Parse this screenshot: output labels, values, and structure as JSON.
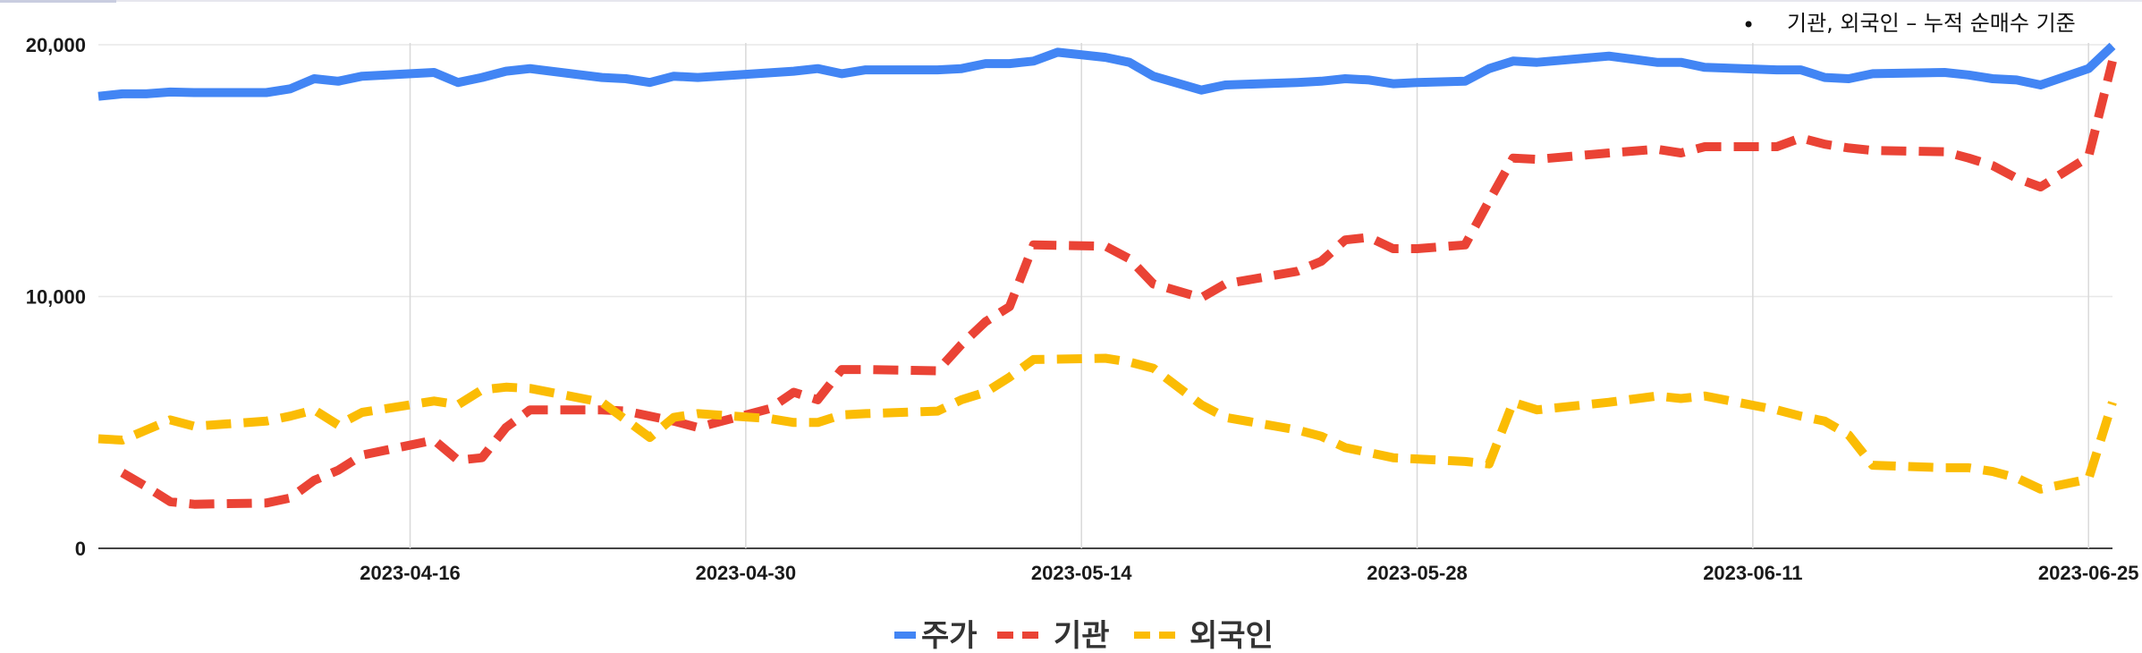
{
  "note": {
    "bullet": "•",
    "text": "기관, 외국인 – 누적 순매수 기준"
  },
  "chart_data": {
    "type": "line",
    "ylim": [
      0,
      20000
    ],
    "yticks": [
      {
        "value": 0,
        "label": "0"
      },
      {
        "value": 10000,
        "label": "10,000"
      },
      {
        "value": 20000,
        "label": "20,000"
      }
    ],
    "xlim": [
      "2023-04-03",
      "2023-06-26"
    ],
    "xticks": [
      {
        "date": "2023-04-16",
        "label": "2023-04-16"
      },
      {
        "date": "2023-04-30",
        "label": "2023-04-30"
      },
      {
        "date": "2023-05-14",
        "label": "2023-05-14"
      },
      {
        "date": "2023-05-28",
        "label": "2023-05-28"
      },
      {
        "date": "2023-06-11",
        "label": "2023-06-11"
      },
      {
        "date": "2023-06-25",
        "label": "2023-06-25"
      }
    ],
    "grid": true,
    "legend_position": "bottom",
    "series": [
      {
        "name": "주가",
        "color": "#4285F4",
        "dash": "solid",
        "points": [
          [
            "2023-04-03",
            17950
          ],
          [
            "2023-04-04",
            18050
          ],
          [
            "2023-04-05",
            18050
          ],
          [
            "2023-04-06",
            18120
          ],
          [
            "2023-04-07",
            18100
          ],
          [
            "2023-04-10",
            18100
          ],
          [
            "2023-04-11",
            18250
          ],
          [
            "2023-04-12",
            18650
          ],
          [
            "2023-04-13",
            18550
          ],
          [
            "2023-04-14",
            18750
          ],
          [
            "2023-04-17",
            18900
          ],
          [
            "2023-04-18",
            18500
          ],
          [
            "2023-04-19",
            18700
          ],
          [
            "2023-04-20",
            18950
          ],
          [
            "2023-04-21",
            19050
          ],
          [
            "2023-04-24",
            18700
          ],
          [
            "2023-04-25",
            18650
          ],
          [
            "2023-04-26",
            18500
          ],
          [
            "2023-04-27",
            18750
          ],
          [
            "2023-04-28",
            18700
          ],
          [
            "2023-05-02",
            18950
          ],
          [
            "2023-05-03",
            19050
          ],
          [
            "2023-05-04",
            18850
          ],
          [
            "2023-05-05",
            19000
          ],
          [
            "2023-05-08",
            19000
          ],
          [
            "2023-05-09",
            19050
          ],
          [
            "2023-05-10",
            19250
          ],
          [
            "2023-05-11",
            19250
          ],
          [
            "2023-05-12",
            19350
          ],
          [
            "2023-05-13",
            19700
          ],
          [
            "2023-05-15",
            19500
          ],
          [
            "2023-05-16",
            19300
          ],
          [
            "2023-05-17",
            18750
          ],
          [
            "2023-05-19",
            18200
          ],
          [
            "2023-05-20",
            18400
          ],
          [
            "2023-05-23",
            18500
          ],
          [
            "2023-05-24",
            18550
          ],
          [
            "2023-05-25",
            18650
          ],
          [
            "2023-05-26",
            18600
          ],
          [
            "2023-05-27",
            18450
          ],
          [
            "2023-05-28",
            18500
          ],
          [
            "2023-05-30",
            18550
          ],
          [
            "2023-05-31",
            19050
          ],
          [
            "2023-06-01",
            19350
          ],
          [
            "2023-06-02",
            19300
          ],
          [
            "2023-06-05",
            19550
          ],
          [
            "2023-06-07",
            19300
          ],
          [
            "2023-06-08",
            19300
          ],
          [
            "2023-06-09",
            19100
          ],
          [
            "2023-06-12",
            19000
          ],
          [
            "2023-06-13",
            19000
          ],
          [
            "2023-06-14",
            18700
          ],
          [
            "2023-06-15",
            18650
          ],
          [
            "2023-06-16",
            18850
          ],
          [
            "2023-06-19",
            18900
          ],
          [
            "2023-06-20",
            18800
          ],
          [
            "2023-06-21",
            18650
          ],
          [
            "2023-06-22",
            18600
          ],
          [
            "2023-06-23",
            18400
          ],
          [
            "2023-06-25",
            19050
          ],
          [
            "2023-06-26",
            19950
          ]
        ]
      },
      {
        "name": "기관",
        "color": "#EA4335",
        "dash": "dashed",
        "points": [
          [
            "2023-04-04",
            3000
          ],
          [
            "2023-04-05",
            2450
          ],
          [
            "2023-04-06",
            1850
          ],
          [
            "2023-04-07",
            1750
          ],
          [
            "2023-04-10",
            1800
          ],
          [
            "2023-04-11",
            2000
          ],
          [
            "2023-04-12",
            2700
          ],
          [
            "2023-04-13",
            3100
          ],
          [
            "2023-04-14",
            3700
          ],
          [
            "2023-04-17",
            4300
          ],
          [
            "2023-04-18",
            3500
          ],
          [
            "2023-04-19",
            3600
          ],
          [
            "2023-04-20",
            4800
          ],
          [
            "2023-04-21",
            5500
          ],
          [
            "2023-04-24",
            5500
          ],
          [
            "2023-04-25",
            5450
          ],
          [
            "2023-04-26",
            5250
          ],
          [
            "2023-04-27",
            5050
          ],
          [
            "2023-04-28",
            4800
          ],
          [
            "2023-05-01",
            5550
          ],
          [
            "2023-05-02",
            6200
          ],
          [
            "2023-05-03",
            5900
          ],
          [
            "2023-05-04",
            7100
          ],
          [
            "2023-05-05",
            7100
          ],
          [
            "2023-05-08",
            7050
          ],
          [
            "2023-05-09",
            8100
          ],
          [
            "2023-05-10",
            9000
          ],
          [
            "2023-05-11",
            9600
          ],
          [
            "2023-05-12",
            12050
          ],
          [
            "2023-05-15",
            12000
          ],
          [
            "2023-05-16",
            11500
          ],
          [
            "2023-05-17",
            10500
          ],
          [
            "2023-05-19",
            9950
          ],
          [
            "2023-05-20",
            10500
          ],
          [
            "2023-05-23",
            11000
          ],
          [
            "2023-05-24",
            11400
          ],
          [
            "2023-05-25",
            12250
          ],
          [
            "2023-05-26",
            12350
          ],
          [
            "2023-05-27",
            11900
          ],
          [
            "2023-05-28",
            11900
          ],
          [
            "2023-05-30",
            12050
          ],
          [
            "2023-05-31",
            13800
          ],
          [
            "2023-06-01",
            15500
          ],
          [
            "2023-06-02",
            15450
          ],
          [
            "2023-06-05",
            15700
          ],
          [
            "2023-06-07",
            15850
          ],
          [
            "2023-06-08",
            15700
          ],
          [
            "2023-06-09",
            15950
          ],
          [
            "2023-06-12",
            15950
          ],
          [
            "2023-06-13",
            16300
          ],
          [
            "2023-06-14",
            16050
          ],
          [
            "2023-06-15",
            15900
          ],
          [
            "2023-06-16",
            15800
          ],
          [
            "2023-06-19",
            15750
          ],
          [
            "2023-06-20",
            15500
          ],
          [
            "2023-06-21",
            15200
          ],
          [
            "2023-06-22",
            14700
          ],
          [
            "2023-06-23",
            14350
          ],
          [
            "2023-06-25",
            15550
          ],
          [
            "2023-06-26",
            19350
          ]
        ]
      },
      {
        "name": "외국인",
        "color": "#FBBC04",
        "dash": "dashed",
        "points": [
          [
            "2023-04-03",
            4350
          ],
          [
            "2023-04-04",
            4300
          ],
          [
            "2023-04-05",
            4700
          ],
          [
            "2023-04-06",
            5100
          ],
          [
            "2023-04-07",
            4850
          ],
          [
            "2023-04-10",
            5050
          ],
          [
            "2023-04-11",
            5250
          ],
          [
            "2023-04-12",
            5500
          ],
          [
            "2023-04-13",
            4900
          ],
          [
            "2023-04-14",
            5400
          ],
          [
            "2023-04-17",
            5850
          ],
          [
            "2023-04-18",
            5700
          ],
          [
            "2023-04-19",
            6300
          ],
          [
            "2023-04-20",
            6400
          ],
          [
            "2023-04-21",
            6350
          ],
          [
            "2023-04-24",
            5800
          ],
          [
            "2023-04-25",
            5100
          ],
          [
            "2023-04-26",
            4400
          ],
          [
            "2023-04-27",
            5200
          ],
          [
            "2023-04-28",
            5350
          ],
          [
            "2023-05-01",
            5150
          ],
          [
            "2023-05-02",
            5000
          ],
          [
            "2023-05-03",
            5000
          ],
          [
            "2023-05-04",
            5300
          ],
          [
            "2023-05-05",
            5350
          ],
          [
            "2023-05-08",
            5450
          ],
          [
            "2023-05-09",
            5900
          ],
          [
            "2023-05-10",
            6200
          ],
          [
            "2023-05-11",
            6800
          ],
          [
            "2023-05-12",
            7500
          ],
          [
            "2023-05-15",
            7550
          ],
          [
            "2023-05-16",
            7400
          ],
          [
            "2023-05-17",
            7150
          ],
          [
            "2023-05-19",
            5700
          ],
          [
            "2023-05-20",
            5200
          ],
          [
            "2023-05-23",
            4700
          ],
          [
            "2023-05-24",
            4450
          ],
          [
            "2023-05-25",
            4000
          ],
          [
            "2023-05-26",
            3800
          ],
          [
            "2023-05-27",
            3600
          ],
          [
            "2023-05-28",
            3550
          ],
          [
            "2023-05-30",
            3450
          ],
          [
            "2023-05-31",
            3350
          ],
          [
            "2023-06-01",
            5800
          ],
          [
            "2023-06-02",
            5500
          ],
          [
            "2023-06-05",
            5800
          ],
          [
            "2023-06-07",
            6050
          ],
          [
            "2023-06-08",
            5950
          ],
          [
            "2023-06-09",
            6050
          ],
          [
            "2023-06-12",
            5500
          ],
          [
            "2023-06-13",
            5250
          ],
          [
            "2023-06-14",
            5050
          ],
          [
            "2023-06-15",
            4500
          ],
          [
            "2023-06-16",
            3300
          ],
          [
            "2023-06-19",
            3200
          ],
          [
            "2023-06-20",
            3200
          ],
          [
            "2023-06-21",
            3050
          ],
          [
            "2023-06-22",
            2800
          ],
          [
            "2023-06-23",
            2350
          ],
          [
            "2023-06-25",
            2750
          ],
          [
            "2023-06-26",
            5800
          ]
        ]
      }
    ]
  }
}
